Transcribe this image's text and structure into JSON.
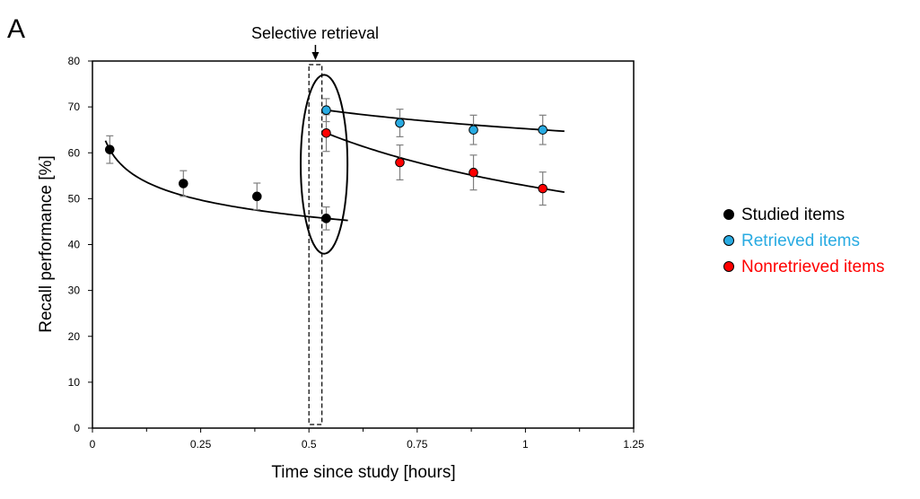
{
  "chart_data": {
    "type": "scatter",
    "panel_label": "A",
    "annotation": "Selective retrieval",
    "xlabel": "Time since study [hours]",
    "ylabel": "Recall performance [%]",
    "xlim": [
      0,
      1.25
    ],
    "ylim": [
      0,
      80
    ],
    "xticks": [
      "0",
      "0.25",
      "0.5",
      "0.75",
      "1",
      "1.25"
    ],
    "yticks": [
      "0",
      "10",
      "20",
      "30",
      "40",
      "50",
      "60",
      "70",
      "80"
    ],
    "grid": false,
    "legend_position": "right",
    "series": [
      {
        "name": "Studied items",
        "color": "#000000",
        "x": [
          0.04,
          0.21,
          0.38,
          0.54
        ],
        "y": [
          60.7,
          53.3,
          50.5,
          45.7
        ],
        "err": [
          3.0,
          2.8,
          2.9,
          2.5
        ],
        "fit": "power",
        "fit_range": [
          0.03,
          0.59
        ]
      },
      {
        "name": "Retrieved items",
        "color": "#29abe2",
        "x": [
          0.54,
          0.71,
          0.88,
          1.04
        ],
        "y": [
          69.3,
          66.5,
          65.0,
          65.0
        ],
        "err": [
          2.5,
          3.0,
          3.2,
          3.2
        ],
        "fit": "power",
        "fit_range": [
          0.535,
          1.09
        ]
      },
      {
        "name": "Nonretrieved items",
        "color": "#ff0000",
        "x": [
          0.54,
          0.71,
          0.88,
          1.04
        ],
        "y": [
          64.3,
          57.9,
          55.7,
          52.2
        ],
        "err": [
          4.0,
          3.8,
          3.8,
          3.6
        ],
        "fit": "power",
        "fit_range": [
          0.535,
          1.09
        ]
      }
    ],
    "markings": {
      "dashed_box_x": [
        0.5,
        0.53
      ],
      "ellipse_center": [
        0.535,
        57.5
      ],
      "ellipse_radius": [
        0.054,
        19.5
      ]
    }
  }
}
